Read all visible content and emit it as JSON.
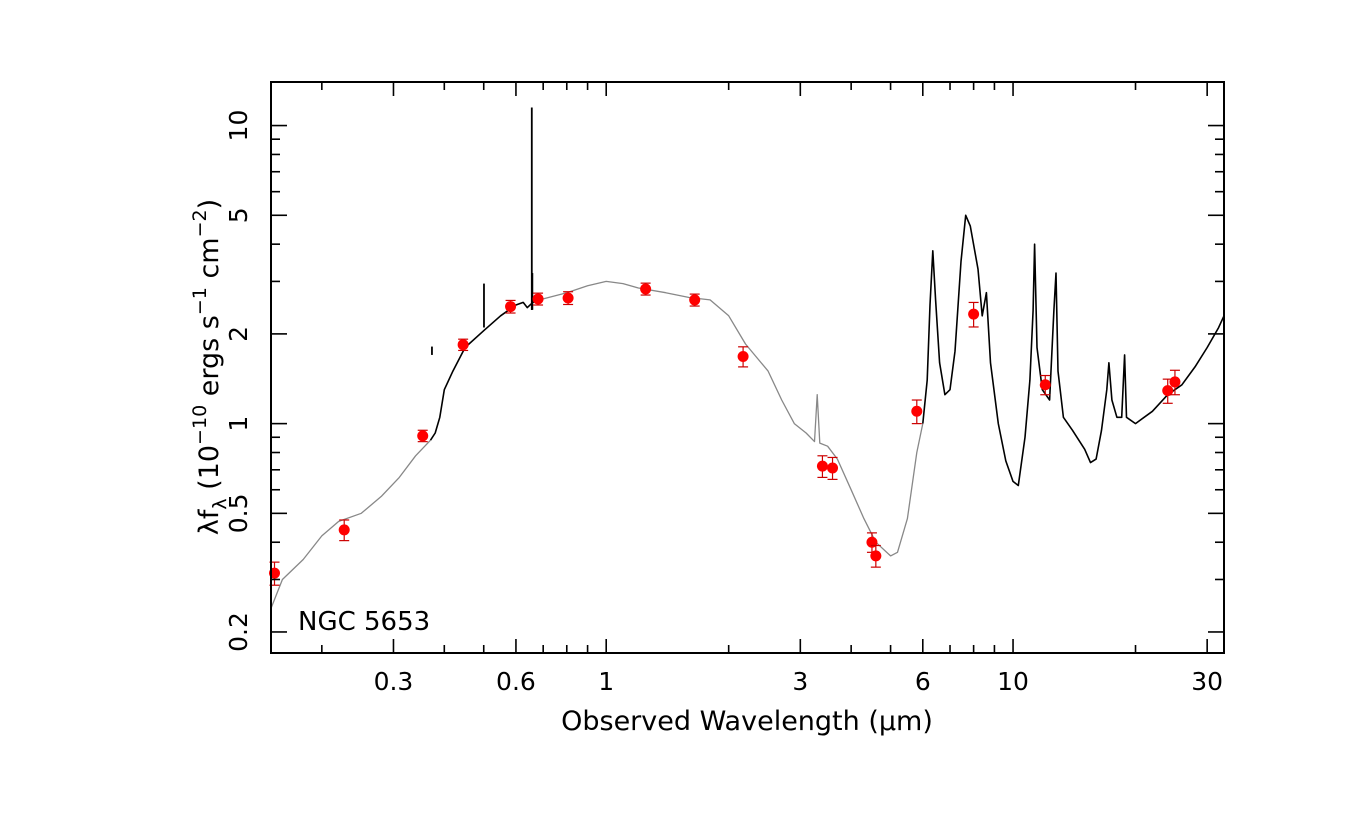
{
  "chart_data": {
    "type": "scatter",
    "title": "",
    "annotation": "NGC 5653",
    "xlabel": "Observed Wavelength (μm)",
    "ylabel_parts": {
      "pre": "λf",
      "sub": "λ",
      "mid": " (10",
      "exp1": "−10",
      "mid2": " ergs s",
      "exp2": "−1",
      "mid3": " cm",
      "exp3": "−2",
      "post": ")"
    },
    "xscale": "log",
    "yscale": "log",
    "xlim": [
      0.15,
      33
    ],
    "ylim": [
      0.17,
      14
    ],
    "xticks": [
      0.3,
      0.6,
      1,
      3,
      6,
      10,
      30
    ],
    "xtick_labels": [
      "0.3",
      "0.6",
      "1",
      "3",
      "6",
      "10",
      "30"
    ],
    "yticks": [
      0.2,
      0.5,
      1,
      2,
      5,
      10
    ],
    "ytick_labels": [
      "0.2",
      "0.5",
      "1",
      "2",
      "5",
      "10"
    ],
    "grid": false,
    "colors": {
      "points": "#ff0000",
      "errorbars": "#cc0000",
      "model": "#888888",
      "spectrum": "#000000"
    },
    "series": [
      {
        "type": "scatter-errorbar",
        "points": [
          {
            "x": 0.153,
            "y": 0.315,
            "yerr": 0.028
          },
          {
            "x": 0.227,
            "y": 0.44,
            "yerr": 0.035
          },
          {
            "x": 0.354,
            "y": 0.91,
            "yerr": 0.04
          },
          {
            "x": 0.445,
            "y": 1.84,
            "yerr": 0.08
          },
          {
            "x": 0.582,
            "y": 2.47,
            "yerr": 0.12
          },
          {
            "x": 0.68,
            "y": 2.62,
            "yerr": 0.12
          },
          {
            "x": 0.806,
            "y": 2.64,
            "yerr": 0.13
          },
          {
            "x": 1.25,
            "y": 2.83,
            "yerr": 0.13
          },
          {
            "x": 1.65,
            "y": 2.6,
            "yerr": 0.12
          },
          {
            "x": 2.17,
            "y": 1.68,
            "yerr": 0.13
          },
          {
            "x": 3.4,
            "y": 0.72,
            "yerr": 0.06
          },
          {
            "x": 3.6,
            "y": 0.71,
            "yerr": 0.06
          },
          {
            "x": 4.5,
            "y": 0.4,
            "yerr": 0.03
          },
          {
            "x": 4.6,
            "y": 0.36,
            "yerr": 0.03
          },
          {
            "x": 5.8,
            "y": 1.1,
            "yerr": 0.1
          },
          {
            "x": 8.0,
            "y": 2.33,
            "yerr": 0.22
          },
          {
            "x": 12.0,
            "y": 1.35,
            "yerr": 0.1
          },
          {
            "x": 24.0,
            "y": 1.29,
            "yerr": 0.12
          },
          {
            "x": 25.0,
            "y": 1.38,
            "yerr": 0.13
          }
        ]
      },
      {
        "type": "line",
        "style": "model-gray",
        "points": [
          [
            0.15,
            0.24
          ],
          [
            0.16,
            0.3
          ],
          [
            0.18,
            0.35
          ],
          [
            0.2,
            0.42
          ],
          [
            0.22,
            0.47
          ],
          [
            0.25,
            0.5
          ],
          [
            0.28,
            0.57
          ],
          [
            0.31,
            0.66
          ],
          [
            0.34,
            0.78
          ],
          [
            0.37,
            0.88
          ]
        ]
      },
      {
        "type": "line",
        "style": "optical-black",
        "points": [
          [
            0.37,
            0.88
          ],
          [
            0.38,
            0.93
          ],
          [
            0.39,
            1.05
          ],
          [
            0.4,
            1.3
          ],
          [
            0.42,
            1.5
          ],
          [
            0.45,
            1.8
          ],
          [
            0.5,
            2.05
          ],
          [
            0.55,
            2.3
          ],
          [
            0.6,
            2.5
          ],
          [
            0.625,
            2.55
          ],
          [
            0.64,
            2.45
          ],
          [
            0.66,
            2.55
          ],
          [
            0.7,
            2.62
          ]
        ]
      },
      {
        "type": "line",
        "style": "model-gray",
        "points": [
          [
            0.7,
            2.62
          ],
          [
            0.8,
            2.75
          ],
          [
            0.9,
            2.9
          ],
          [
            1.0,
            3.0
          ],
          [
            1.1,
            2.95
          ],
          [
            1.2,
            2.85
          ],
          [
            1.4,
            2.75
          ],
          [
            1.6,
            2.65
          ],
          [
            1.8,
            2.6
          ],
          [
            2.0,
            2.3
          ],
          [
            2.2,
            1.85
          ],
          [
            2.5,
            1.5
          ],
          [
            2.7,
            1.2
          ],
          [
            2.9,
            1.0
          ],
          [
            3.1,
            0.93
          ],
          [
            3.25,
            0.87
          ],
          [
            3.3,
            1.25
          ],
          [
            3.35,
            0.86
          ],
          [
            3.5,
            0.84
          ],
          [
            3.7,
            0.76
          ],
          [
            4.0,
            0.6
          ],
          [
            4.3,
            0.48
          ],
          [
            4.6,
            0.4
          ],
          [
            5.0,
            0.36
          ],
          [
            5.2,
            0.37
          ],
          [
            5.5,
            0.48
          ],
          [
            5.8,
            0.8
          ],
          [
            6.0,
            1.0
          ]
        ]
      },
      {
        "type": "line",
        "style": "ir-black",
        "points": [
          [
            6.0,
            1.0
          ],
          [
            6.15,
            1.4
          ],
          [
            6.25,
            2.5
          ],
          [
            6.35,
            3.8
          ],
          [
            6.45,
            2.6
          ],
          [
            6.6,
            1.6
          ],
          [
            6.8,
            1.25
          ],
          [
            7.0,
            1.3
          ],
          [
            7.2,
            1.75
          ],
          [
            7.45,
            3.5
          ],
          [
            7.65,
            5.0
          ],
          [
            7.85,
            4.6
          ],
          [
            8.2,
            3.3
          ],
          [
            8.4,
            2.3
          ],
          [
            8.6,
            2.75
          ],
          [
            8.8,
            1.6
          ],
          [
            9.2,
            1.0
          ],
          [
            9.6,
            0.75
          ],
          [
            10.0,
            0.64
          ],
          [
            10.3,
            0.62
          ],
          [
            10.7,
            0.9
          ],
          [
            11.0,
            1.4
          ],
          [
            11.2,
            2.4
          ],
          [
            11.3,
            4.0
          ],
          [
            11.45,
            1.8
          ],
          [
            11.8,
            1.3
          ],
          [
            12.3,
            1.2
          ],
          [
            12.6,
            2.4
          ],
          [
            12.75,
            3.2
          ],
          [
            12.9,
            1.5
          ],
          [
            13.3,
            1.05
          ],
          [
            14.0,
            0.95
          ],
          [
            15.0,
            0.82
          ],
          [
            15.5,
            0.74
          ],
          [
            16.0,
            0.76
          ],
          [
            16.5,
            0.95
          ],
          [
            17.0,
            1.3
          ],
          [
            17.2,
            1.6
          ],
          [
            17.5,
            1.2
          ],
          [
            18.0,
            1.05
          ],
          [
            18.5,
            1.05
          ],
          [
            18.8,
            1.7
          ],
          [
            19.0,
            1.05
          ],
          [
            20.0,
            1.0
          ],
          [
            22.0,
            1.1
          ],
          [
            24.0,
            1.25
          ],
          [
            26.0,
            1.35
          ],
          [
            28.0,
            1.55
          ],
          [
            30.0,
            1.8
          ],
          [
            32.0,
            2.1
          ],
          [
            33.0,
            2.3
          ]
        ]
      }
    ],
    "optical_lines": [
      {
        "x": 0.373,
        "y": 1.7
      },
      {
        "x": 0.5007,
        "y": 2.95
      },
      {
        "x": 0.6563,
        "y": 11.5
      },
      {
        "x": 0.6584,
        "y": 3.2
      }
    ]
  }
}
